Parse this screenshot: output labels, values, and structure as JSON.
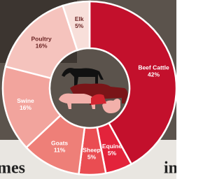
{
  "chart_data": {
    "type": "donut",
    "categories": [
      "Beef Cattle",
      "Equine",
      "Sheep",
      "Goats",
      "Swine",
      "Poultry",
      "Elk"
    ],
    "values": [
      42,
      5,
      5,
      11,
      16,
      16,
      5
    ],
    "value_labels": [
      "42%",
      "5%",
      "5%",
      "11%",
      "16%",
      "16%",
      "5%"
    ],
    "colors": [
      "#c3102c",
      "#e3233b",
      "#ea4d52",
      "#ee7f78",
      "#f2a49d",
      "#f5c3bd",
      "#f8dfda"
    ],
    "background_text": [
      "mes",
      "in"
    ]
  }
}
